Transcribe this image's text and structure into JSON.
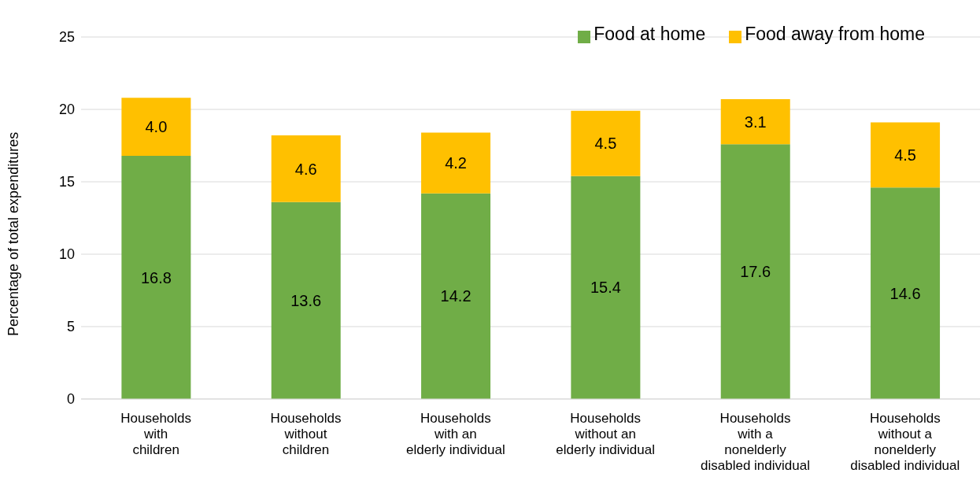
{
  "chart_data": {
    "type": "bar",
    "stacked": true,
    "ylabel": "Percentage of total expenditures",
    "categories": [
      "Households\nwith\nchildren",
      "Households\nwithout\nchildren",
      "Households\nwith an\nelderly individual",
      "Households\nwithout an\nelderly individual",
      "Households\nwith a\nnonelderly\ndisabled individual",
      "Households\nwithout a\nnonelderly\ndisabled individual"
    ],
    "series": [
      {
        "name": "Food at home",
        "color": "#70ad47",
        "values": [
          16.8,
          13.6,
          14.2,
          15.4,
          17.6,
          14.6
        ],
        "value_labels": [
          "16.8",
          "13.6",
          "14.2",
          "15.4",
          "17.6",
          "14.6"
        ]
      },
      {
        "name": "Food away from home",
        "color": "#ffc000",
        "values": [
          4.0,
          4.6,
          4.2,
          4.5,
          3.1,
          4.5
        ],
        "value_labels": [
          "4.0",
          "4.6",
          "4.2",
          "4.5",
          "3.1",
          "4.5"
        ]
      }
    ],
    "ylim": [
      0,
      25
    ],
    "yticks": [
      0,
      5,
      10,
      15,
      20,
      25
    ],
    "grid": "y",
    "legend": "top right"
  }
}
